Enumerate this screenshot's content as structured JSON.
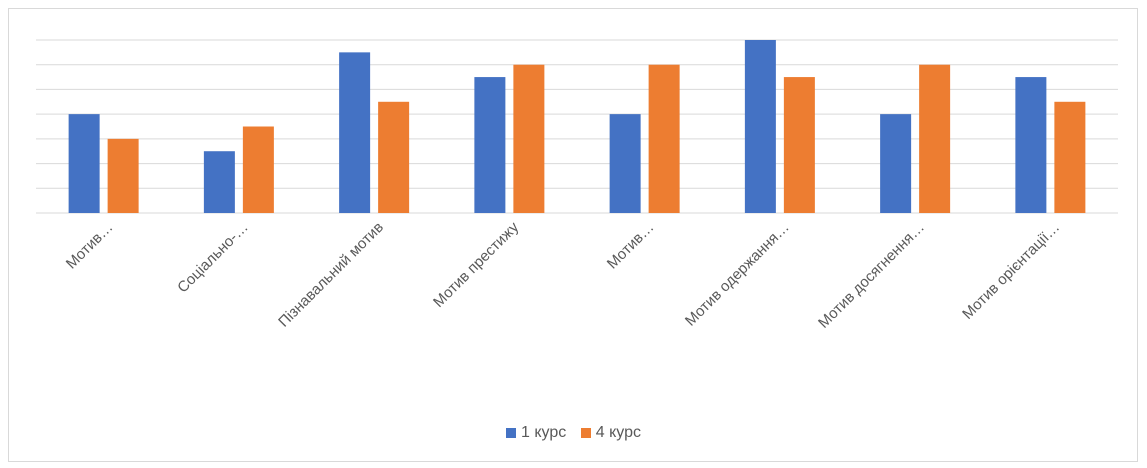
{
  "chart_data": {
    "type": "bar",
    "title": "",
    "xlabel": "",
    "ylabel": "",
    "ylim": [
      0,
      7
    ],
    "grid": true,
    "legend_position": "bottom",
    "categories": [
      "Мотив…",
      "Соціально-…",
      "Пізнавальний мотив",
      "Мотив престижу",
      "Мотив…",
      "Мотив одержання…",
      "Мотив досягнення…",
      "Мотив орієнтації…"
    ],
    "series": [
      {
        "name": "1 курс",
        "color": "#4472C4",
        "values": [
          4,
          2.5,
          6.5,
          5.5,
          4,
          7,
          4,
          5.5
        ]
      },
      {
        "name": "4 курс",
        "color": "#ED7D31",
        "values": [
          3,
          3.5,
          4.5,
          6,
          6,
          5.5,
          6,
          4.5
        ]
      }
    ]
  }
}
